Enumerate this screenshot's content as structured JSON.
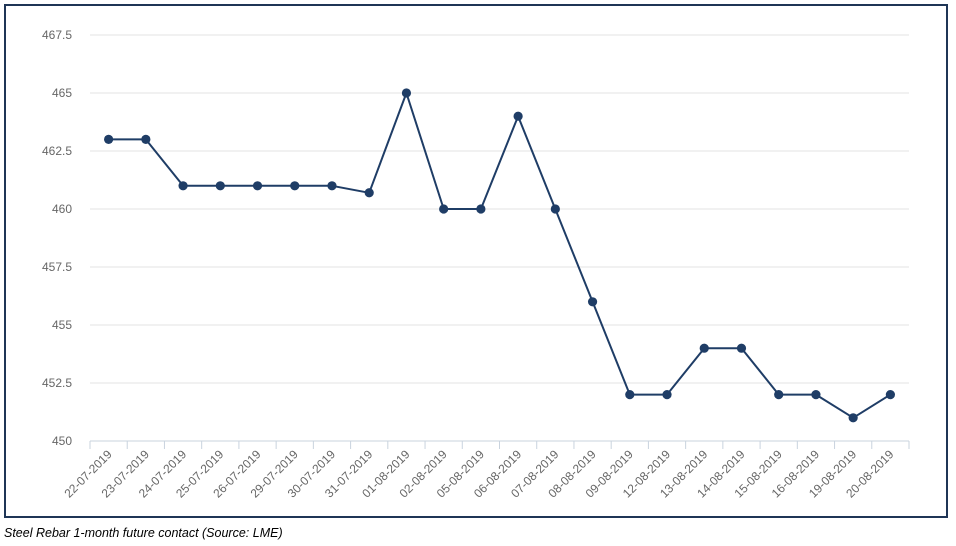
{
  "caption": "Steel Rebar 1-month future contact (Source: LME)",
  "colors": {
    "line": "#1f3d66",
    "marker": "#1f3d66",
    "grid": "#e3e3e3",
    "axis": "#c9d3de",
    "frame": "#1f3556"
  },
  "chart_data": {
    "type": "line",
    "title": "",
    "xlabel": "",
    "ylabel": "",
    "ylim": [
      450,
      467.5
    ],
    "yticks": [
      "450",
      "452.5",
      "455",
      "457.5",
      "460",
      "462.5",
      "465",
      "467.5"
    ],
    "categories": [
      "22-07-2019",
      "23-07-2019",
      "24-07-2019",
      "25-07-2019",
      "26-07-2019",
      "29-07-2019",
      "30-07-2019",
      "31-07-2019",
      "01-08-2019",
      "02-08-2019",
      "05-08-2019",
      "06-08-2019",
      "07-08-2019",
      "08-08-2019",
      "09-08-2019",
      "12-08-2019",
      "13-08-2019",
      "14-08-2019",
      "15-08-2019",
      "16-08-2019",
      "19-08-2019",
      "20-08-2019"
    ],
    "grid": true,
    "legend": "none",
    "series": [
      {
        "values": [
          463,
          463,
          461,
          461,
          461,
          461,
          461,
          460.7,
          465,
          460,
          460,
          464,
          460,
          456,
          452,
          452,
          454,
          454,
          452,
          452,
          451,
          452
        ]
      }
    ]
  }
}
